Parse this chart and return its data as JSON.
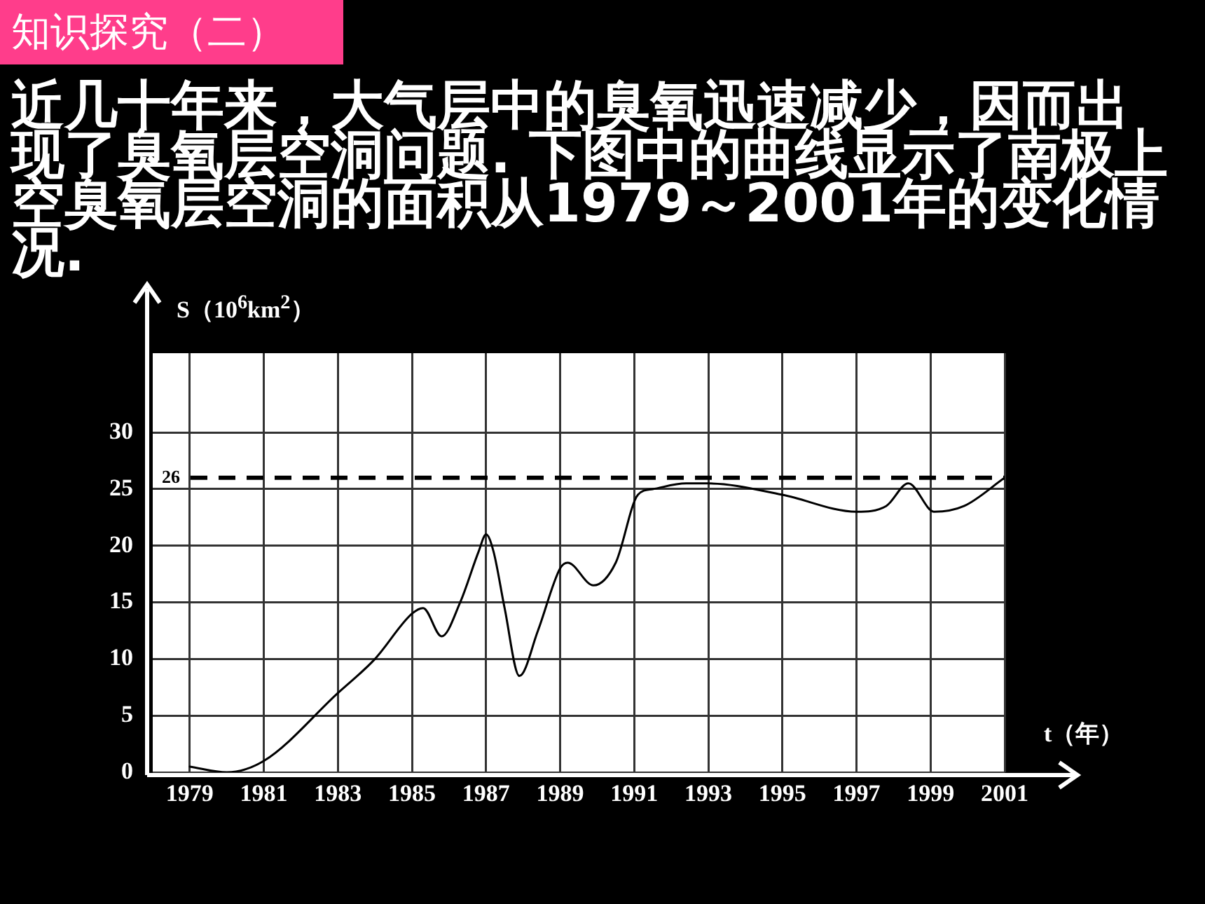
{
  "chart_data": {
    "type": "line",
    "title": "知识探究（二）",
    "subtitle": "近几十年来，大气层中的臭氧迅速减少，因而出现了臭氧层空洞问题. 下图中的曲线显示了南极上空臭氧层空洞的面积从1979～2001年的变化情况.",
    "xlabel": "t（年）",
    "ylabel": "S（10$^{6}$km$^{2}$）",
    "x": [
      1979,
      1980,
      1981,
      1983,
      1984,
      1985,
      1985.3,
      1985.8,
      1986.3,
      1986.8,
      1987,
      1987.2,
      1987.5,
      1987.9,
      1988.4,
      1989,
      1989.2,
      1989.9,
      1990.5,
      1991.1,
      1991.5,
      1992.4,
      1993,
      1995,
      1997,
      1997.8,
      1998.4,
      1999.1,
      1999.9,
      2001
    ],
    "series": [
      {
        "color": "#000000",
        "values": [
          0.5,
          0,
          1,
          7,
          10,
          14,
          14.5,
          12,
          15,
          19.5,
          21,
          19.5,
          14.5,
          8.5,
          12.5,
          18,
          18.5,
          16.5,
          18.5,
          24.5,
          25,
          25.5,
          25.5,
          24.5,
          23,
          23.5,
          25.5,
          23,
          23.5,
          26
        ]
      }
    ],
    "xlim": [
      1978,
      2001
    ],
    "xticks": [
      1979,
      1981,
      1983,
      1985,
      1987,
      1989,
      1991,
      1993,
      1995,
      1997,
      1999,
      2001
    ],
    "ylim": [
      0,
      37
    ],
    "yticks": [
      0,
      5,
      10,
      15,
      20,
      25,
      30
    ],
    "ref_lines": [
      {
        "axis": "y",
        "value": 26,
        "label": "26",
        "line_style": "dashed",
        "color": "#000000"
      }
    ],
    "grid": true,
    "legend": false,
    "marker": "none",
    "line_style": "solid"
  }
}
